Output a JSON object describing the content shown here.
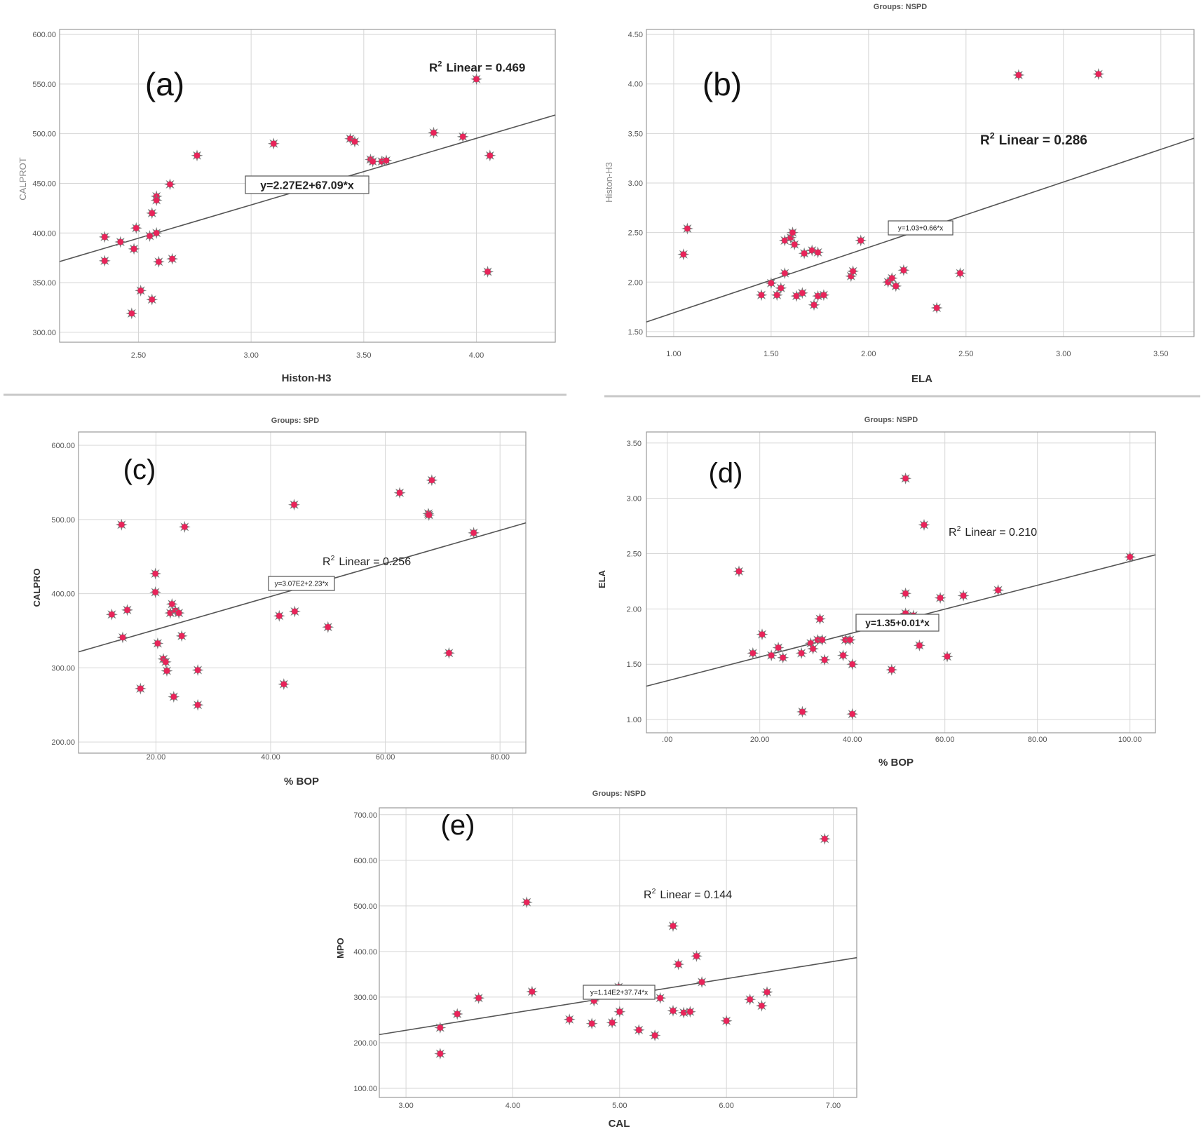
{
  "chart_data": [
    {
      "type": "scatter",
      "panel_label": "(a)",
      "group_title": "",
      "xlabel": "Histon-H3",
      "ylabel": "CALPROT",
      "xlim": [
        2.15,
        4.35
      ],
      "ylim": [
        290,
        605
      ],
      "x_ticks": [
        2.5,
        3.0,
        3.5,
        4.0
      ],
      "x_tick_labels": [
        "2.50",
        "3.00",
        "3.50",
        "4.00"
      ],
      "y_ticks": [
        300,
        350,
        400,
        450,
        500,
        550,
        600
      ],
      "y_tick_labels": [
        "300.00",
        "350.00",
        "400.00",
        "450.00",
        "500.00",
        "550.00",
        "600.00"
      ],
      "r2_label": "Linear = 0.469",
      "fit_equation": "y=2.27E2+67.09*x",
      "fit": {
        "intercept": 227,
        "slope": 67.09
      },
      "points": [
        [
          2.35,
          396
        ],
        [
          2.35,
          372
        ],
        [
          2.42,
          391
        ],
        [
          2.47,
          319
        ],
        [
          2.48,
          384
        ],
        [
          2.49,
          405
        ],
        [
          2.51,
          342
        ],
        [
          2.55,
          397
        ],
        [
          2.56,
          420
        ],
        [
          2.56,
          333
        ],
        [
          2.58,
          437
        ],
        [
          2.58,
          433
        ],
        [
          2.58,
          400
        ],
        [
          2.59,
          371
        ],
        [
          2.64,
          449
        ],
        [
          2.65,
          374
        ],
        [
          2.76,
          478
        ],
        [
          3.1,
          490
        ],
        [
          3.44,
          495
        ],
        [
          3.46,
          492
        ],
        [
          3.53,
          474
        ],
        [
          3.54,
          472
        ],
        [
          3.58,
          472
        ],
        [
          3.6,
          473
        ],
        [
          3.81,
          501
        ],
        [
          3.94,
          497
        ],
        [
          4.0,
          555
        ],
        [
          4.05,
          361
        ],
        [
          4.06,
          478
        ]
      ]
    },
    {
      "type": "scatter",
      "panel_label": "(b)",
      "group_title": "Groups: NSPD",
      "xlabel": "ELA",
      "ylabel": "Histon-H3",
      "xlim": [
        0.86,
        3.67
      ],
      "ylim": [
        1.45,
        4.55
      ],
      "x_ticks": [
        1.0,
        1.5,
        2.0,
        2.5,
        3.0,
        3.5
      ],
      "x_tick_labels": [
        "1.00",
        "1.50",
        "2.00",
        "2.50",
        "3.00",
        "3.50"
      ],
      "y_ticks": [
        1.5,
        2.0,
        2.5,
        3.0,
        3.5,
        4.0,
        4.5
      ],
      "y_tick_labels": [
        "1.50",
        "2.00",
        "2.50",
        "3.00",
        "3.50",
        "4.00",
        "4.50"
      ],
      "r2_label": "Linear = 0.286",
      "fit_equation": "y=1.03+0.66*x",
      "fit": {
        "intercept": 1.03,
        "slope": 0.66
      },
      "points": [
        [
          1.05,
          2.28
        ],
        [
          1.07,
          2.54
        ],
        [
          1.45,
          1.87
        ],
        [
          1.5,
          1.99
        ],
        [
          1.53,
          1.87
        ],
        [
          1.55,
          1.94
        ],
        [
          1.57,
          2.09
        ],
        [
          1.57,
          2.42
        ],
        [
          1.6,
          2.45
        ],
        [
          1.61,
          2.5
        ],
        [
          1.62,
          2.38
        ],
        [
          1.63,
          1.86
        ],
        [
          1.66,
          1.89
        ],
        [
          1.67,
          2.29
        ],
        [
          1.71,
          2.32
        ],
        [
          1.72,
          1.77
        ],
        [
          1.74,
          2.3
        ],
        [
          1.74,
          1.86
        ],
        [
          1.77,
          1.87
        ],
        [
          1.91,
          2.06
        ],
        [
          1.92,
          2.11
        ],
        [
          1.96,
          2.42
        ],
        [
          2.1,
          2.0
        ],
        [
          2.12,
          2.04
        ],
        [
          2.14,
          1.96
        ],
        [
          2.18,
          2.12
        ],
        [
          2.35,
          1.74
        ],
        [
          2.47,
          2.09
        ],
        [
          2.77,
          4.09
        ],
        [
          3.18,
          4.1
        ]
      ]
    },
    {
      "type": "scatter",
      "panel_label": "(c)",
      "group_title": "Groups: SPD",
      "xlabel": "% BOP",
      "ylabel": "CALPRO",
      "xlim": [
        6.5,
        84.5
      ],
      "ylim": [
        185,
        618
      ],
      "x_ticks": [
        20,
        40,
        60,
        80
      ],
      "x_tick_labels": [
        "20.00",
        "40.00",
        "60.00",
        "80.00"
      ],
      "y_ticks": [
        200,
        300,
        400,
        500,
        600
      ],
      "y_tick_labels": [
        "200.00",
        "300.00",
        "400.00",
        "500.00",
        "600.00"
      ],
      "r2_label": "Linear = 0.256",
      "fit_equation": "y=3.07E2+2.23*x",
      "fit": {
        "intercept": 307,
        "slope": 2.23
      },
      "points": [
        [
          12.3,
          372
        ],
        [
          14,
          493
        ],
        [
          14.2,
          341
        ],
        [
          15,
          378
        ],
        [
          17.3,
          272
        ],
        [
          19.9,
          427
        ],
        [
          19.9,
          402
        ],
        [
          20.3,
          333
        ],
        [
          21.3,
          312
        ],
        [
          21.7,
          308
        ],
        [
          21.9,
          296
        ],
        [
          22.5,
          374
        ],
        [
          22.8,
          386
        ],
        [
          23.1,
          261
        ],
        [
          23.4,
          377
        ],
        [
          24,
          374
        ],
        [
          24.5,
          343
        ],
        [
          25,
          490
        ],
        [
          27.3,
          297
        ],
        [
          27.3,
          250
        ],
        [
          41.5,
          370
        ],
        [
          42.3,
          278
        ],
        [
          44.1,
          520
        ],
        [
          44.2,
          376
        ],
        [
          50,
          355
        ],
        [
          62.5,
          536
        ],
        [
          67.5,
          508
        ],
        [
          67.6,
          506
        ],
        [
          68.1,
          553
        ],
        [
          71.1,
          320
        ],
        [
          75.4,
          482
        ]
      ]
    },
    {
      "type": "scatter",
      "panel_label": "(d)",
      "group_title": "Groups: NSPD",
      "xlabel": "% BOP",
      "ylabel": "ELA",
      "xlim": [
        -4.5,
        105.5
      ],
      "ylim": [
        0.88,
        3.6
      ],
      "x_ticks": [
        0,
        20,
        40,
        60,
        80,
        100
      ],
      "x_tick_labels": [
        ".00",
        "20.00",
        "40.00",
        "60.00",
        "80.00",
        "100.00"
      ],
      "y_ticks": [
        1.0,
        1.5,
        2.0,
        2.5,
        3.0,
        3.5
      ],
      "y_tick_labels": [
        "1.00",
        "1.50",
        "2.00",
        "2.50",
        "3.00",
        "3.50"
      ],
      "r2_label": "Linear = 0.210",
      "fit_equation": "y=1.35+0.01*x",
      "fit": {
        "intercept": 1.35,
        "slope": 0.0108
      },
      "points": [
        [
          15.5,
          2.34
        ],
        [
          18.5,
          1.6
        ],
        [
          20.5,
          1.77
        ],
        [
          22.5,
          1.58
        ],
        [
          24,
          1.65
        ],
        [
          25,
          1.56
        ],
        [
          29,
          1.6
        ],
        [
          29.2,
          1.07
        ],
        [
          31,
          1.69
        ],
        [
          31.5,
          1.64
        ],
        [
          32.5,
          1.72
        ],
        [
          33,
          1.91
        ],
        [
          33.5,
          1.72
        ],
        [
          34,
          1.54
        ],
        [
          38,
          1.58
        ],
        [
          38.5,
          1.72
        ],
        [
          39.5,
          1.72
        ],
        [
          40,
          1.5
        ],
        [
          40,
          1.05
        ],
        [
          48.5,
          1.45
        ],
        [
          51.5,
          3.18
        ],
        [
          51.5,
          2.14
        ],
        [
          51.5,
          1.96
        ],
        [
          53.2,
          1.94
        ],
        [
          54.5,
          1.67
        ],
        [
          55.5,
          2.76
        ],
        [
          59,
          2.1
        ],
        [
          60.5,
          1.57
        ],
        [
          64,
          2.12
        ],
        [
          71.5,
          2.17
        ],
        [
          100,
          2.47
        ]
      ]
    },
    {
      "type": "scatter",
      "panel_label": "(e)",
      "group_title": "Groups: NSPD",
      "xlabel": "CAL",
      "ylabel": "MPO",
      "xlim": [
        2.75,
        7.22
      ],
      "ylim": [
        80,
        715
      ],
      "x_ticks": [
        3,
        4,
        5,
        6,
        7
      ],
      "x_tick_labels": [
        "3.00",
        "4.00",
        "5.00",
        "6.00",
        "7.00"
      ],
      "y_ticks": [
        100,
        200,
        300,
        400,
        500,
        600,
        700
      ],
      "y_tick_labels": [
        "100.00",
        "200.00",
        "300.00",
        "400.00",
        "500.00",
        "600.00",
        "700.00"
      ],
      "r2_label": "Linear = 0.144",
      "fit_equation": "y=1.14E2+37.74*x",
      "fit": {
        "intercept": 114,
        "slope": 37.74
      },
      "points": [
        [
          3.32,
          233
        ],
        [
          3.32,
          176
        ],
        [
          3.48,
          263
        ],
        [
          3.68,
          298
        ],
        [
          4.13,
          508
        ],
        [
          4.18,
          312
        ],
        [
          4.53,
          251
        ],
        [
          4.74,
          242
        ],
        [
          4.76,
          292
        ],
        [
          4.93,
          244
        ],
        [
          4.99,
          322
        ],
        [
          5.0,
          268
        ],
        [
          5.18,
          228
        ],
        [
          5.33,
          216
        ],
        [
          5.38,
          298
        ],
        [
          5.5,
          456
        ],
        [
          5.5,
          270
        ],
        [
          5.55,
          372
        ],
        [
          5.6,
          266
        ],
        [
          5.66,
          268
        ],
        [
          5.72,
          390
        ],
        [
          5.77,
          333
        ],
        [
          6.0,
          248
        ],
        [
          6.22,
          295
        ],
        [
          6.33,
          281
        ],
        [
          6.38,
          311
        ],
        [
          6.92,
          647
        ]
      ]
    }
  ]
}
